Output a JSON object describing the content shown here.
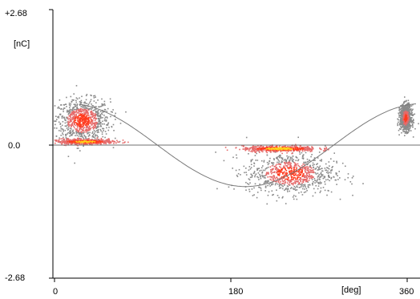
{
  "chart_data": {
    "type": "scatter",
    "title": "",
    "xlabel": "[deg]",
    "ylabel": "[nC]",
    "xlim": [
      0,
      360
    ],
    "ylim": [
      -2.68,
      2.68
    ],
    "x_tick_labels": [
      "0",
      "180",
      "360"
    ],
    "y_tick_labels": [
      "+2.68",
      "0.0",
      "-2.68"
    ],
    "grid": false,
    "legend": "none",
    "reference_sine": {
      "amplitude": 0.82,
      "period_deg": 360,
      "visible_range_deg": [
        25,
        370
      ]
    },
    "clusters": [
      {
        "name": "",
        "x_center": 28,
        "x_spread": 28,
        "y_center": 0.5,
        "y_spread": 0.42,
        "density": "high"
      },
      {
        "name": "",
        "x_center": 30,
        "x_spread": 30,
        "y_center": 0.08,
        "y_spread": 0.05,
        "density": "very-high"
      },
      {
        "name": "",
        "x_center": 240,
        "x_spread": 45,
        "y_center": -0.55,
        "y_spread": 0.4,
        "density": "high"
      },
      {
        "name": "",
        "x_center": 230,
        "x_spread": 38,
        "y_center": -0.06,
        "y_spread": 0.06,
        "density": "very-high"
      },
      {
        "name": "",
        "x_center": 358,
        "x_spread": 6,
        "y_center": 0.55,
        "y_spread": 0.25,
        "density": "high"
      }
    ],
    "colors": {
      "sparse": "#8a8a8a",
      "medium": "#e56a6a",
      "dense": "#ff3b1e",
      "peak": "#ffd21a",
      "axis": "#000000",
      "zero_line": "#6f6f6f",
      "reference_curve": "#7a7a7a"
    }
  }
}
